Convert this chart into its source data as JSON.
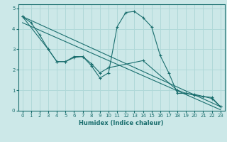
{
  "xlabel": "Humidex (Indice chaleur)",
  "bg_color": "#cce8e8",
  "line_color": "#1a6e6e",
  "grid_color": "#b0d8d8",
  "xlim": [
    -0.5,
    23.5
  ],
  "ylim": [
    0,
    5.2
  ],
  "xticks": [
    0,
    1,
    2,
    3,
    4,
    5,
    6,
    7,
    8,
    9,
    10,
    11,
    12,
    13,
    14,
    15,
    16,
    17,
    18,
    19,
    20,
    21,
    22,
    23
  ],
  "yticks": [
    0,
    1,
    2,
    3,
    4,
    5
  ],
  "series1": {
    "x": [
      0,
      1,
      2,
      3,
      4,
      5,
      6,
      7,
      8,
      9,
      10,
      11,
      12,
      13,
      14,
      15,
      16,
      17,
      18,
      19,
      20,
      21,
      22,
      23
    ],
    "y": [
      4.6,
      4.3,
      3.7,
      3.0,
      2.4,
      2.4,
      2.6,
      2.65,
      2.2,
      1.6,
      1.85,
      4.1,
      4.8,
      4.85,
      4.55,
      4.1,
      2.7,
      1.85,
      0.85,
      0.85,
      0.75,
      0.7,
      0.65,
      0.2
    ]
  },
  "series2": {
    "x": [
      0,
      3,
      4,
      5,
      6,
      7,
      8,
      9,
      10,
      14,
      18,
      19,
      20,
      21,
      22,
      23
    ],
    "y": [
      4.6,
      3.0,
      2.4,
      2.4,
      2.65,
      2.65,
      2.3,
      1.85,
      2.1,
      2.45,
      1.0,
      0.85,
      0.8,
      0.7,
      0.6,
      0.2
    ]
  },
  "line3": {
    "x": [
      0,
      23
    ],
    "y": [
      4.6,
      0.2
    ]
  },
  "line4": {
    "x": [
      0,
      23
    ],
    "y": [
      4.3,
      0.05
    ]
  }
}
